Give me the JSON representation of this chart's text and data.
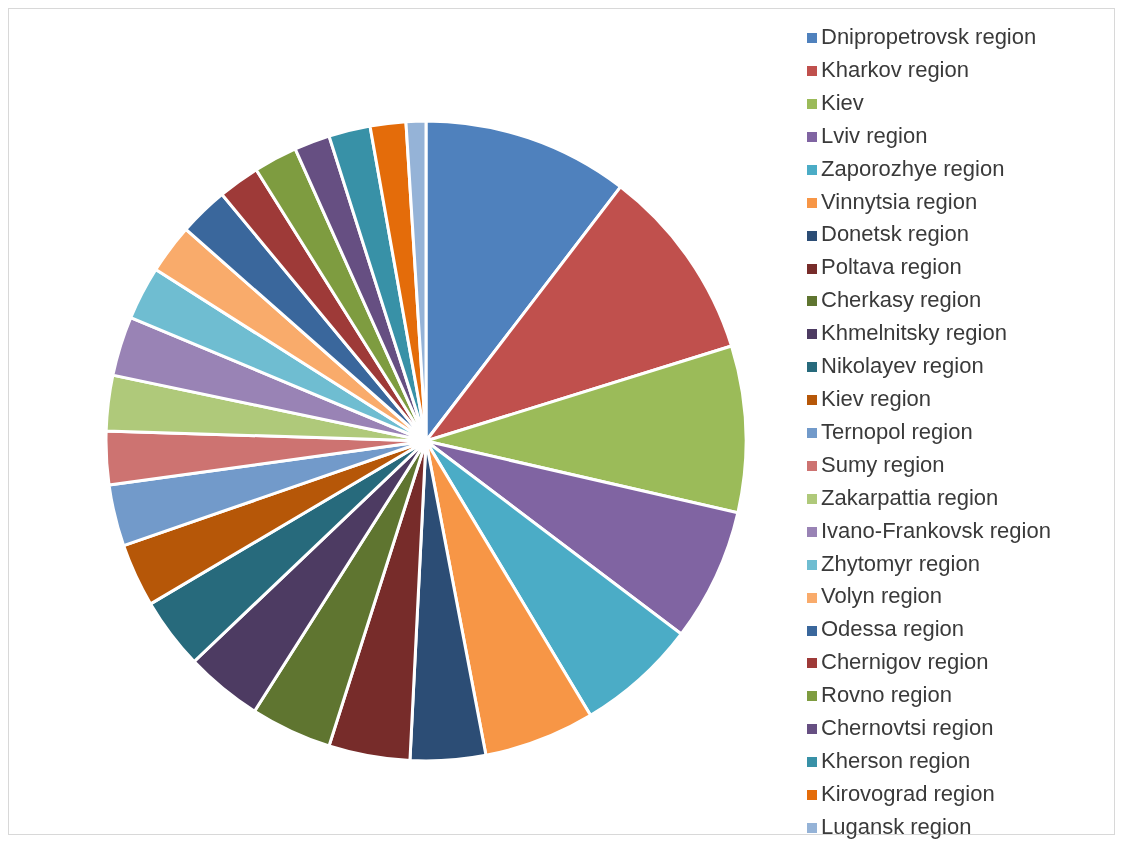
{
  "chart_data": {
    "type": "pie",
    "categories": [
      "Dnipropetrovsk region",
      "Kharkov region",
      "Kiev",
      "Lviv region",
      "Zaporozhye region",
      "Vinnytsia region",
      "Donetsk region",
      "Poltava region",
      "Cherkasy region",
      "Khmelnitsky region",
      "Nikolayev region",
      "Kiev region",
      "Ternopol region",
      "Sumy region",
      "Zakarpattia region",
      "Ivano-Frankovsk region",
      "Zhytomyr region",
      "Volyn region",
      "Odessa region",
      "Chernigov region",
      "Rovno region",
      "Chernovtsi region",
      "Kherson region",
      "Kirovograd region",
      "Lugansk region"
    ],
    "values": [
      10.4,
      9.8,
      8.4,
      6.7,
      6.1,
      5.6,
      3.8,
      4.1,
      4.1,
      3.9,
      3.6,
      3.2,
      3.1,
      2.7,
      2.8,
      3.0,
      2.7,
      2.5,
      2.5,
      2.1,
      2.2,
      1.8,
      2.1,
      1.8,
      1.0
    ],
    "colors": [
      "#4f81bd",
      "#c0504d",
      "#9bbb59",
      "#8064a2",
      "#4bacc6",
      "#f79646",
      "#2c4d75",
      "#772c2a",
      "#5f7530",
      "#4d3b62",
      "#276a7c",
      "#b65708",
      "#729aca",
      "#cd7371",
      "#afc97a",
      "#9983b5",
      "#6fbdd1",
      "#f9ab6b",
      "#3a679c",
      "#9e3a38",
      "#7e9c40",
      "#664f82",
      "#3891a7",
      "#e46c0a",
      "#95b3d7"
    ],
    "legend": "right"
  }
}
